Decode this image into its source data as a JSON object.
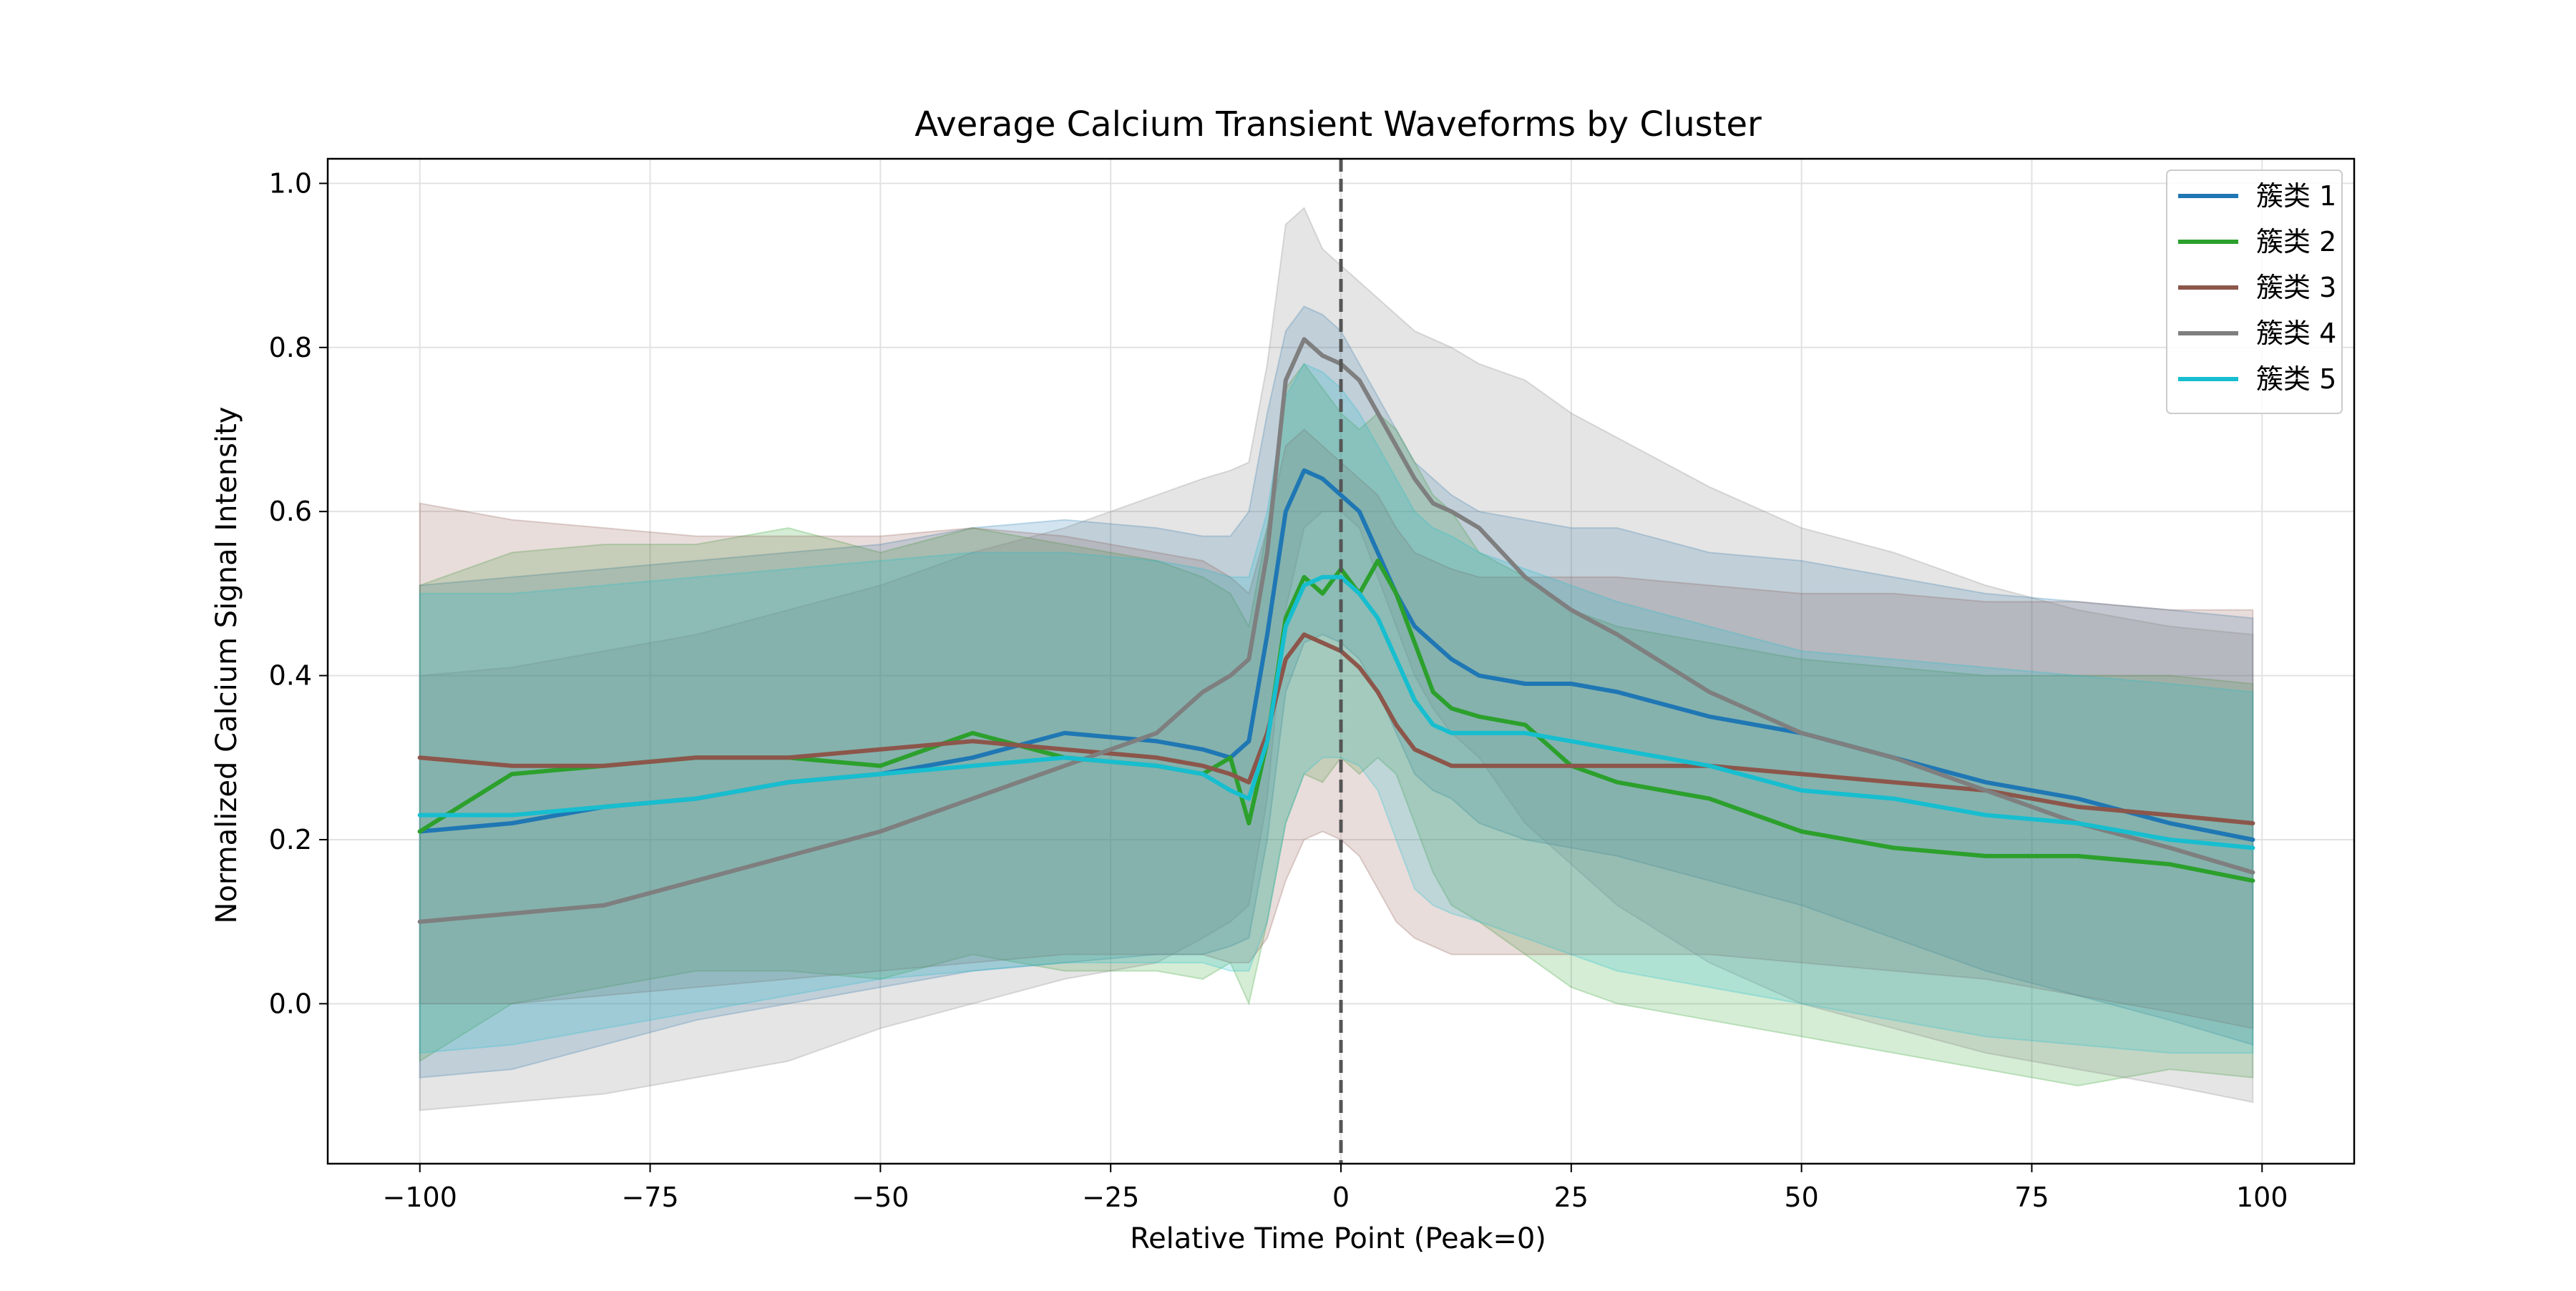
{
  "chart_data": {
    "type": "line",
    "title": "Average Calcium Transient Waveforms by Cluster",
    "xlabel": "Relative Time Point (Peak=0)",
    "ylabel": "Normalized Calcium Signal Intensity",
    "xlim": [
      -110,
      110
    ],
    "ylim": [
      -0.195,
      1.03
    ],
    "xticks": [
      -100,
      -75,
      -50,
      -25,
      0,
      25,
      50,
      75,
      100
    ],
    "xtick_labels": [
      "−100",
      "−75",
      "−50",
      "−25",
      "0",
      "25",
      "50",
      "75",
      "100"
    ],
    "yticks": [
      0.0,
      0.2,
      0.4,
      0.6,
      0.8,
      1.0
    ],
    "ytick_labels": [
      "0.0",
      "0.2",
      "0.4",
      "0.6",
      "0.8",
      "1.0"
    ],
    "grid": true,
    "legend_position": "top-right",
    "reference_line": {
      "x": 0,
      "style": "dashed",
      "color": "#555555"
    },
    "x": [
      -100,
      -90,
      -80,
      -70,
      -60,
      -50,
      -40,
      -30,
      -20,
      -15,
      -12,
      -10,
      -8,
      -6,
      -4,
      -2,
      0,
      2,
      4,
      6,
      8,
      10,
      12,
      15,
      20,
      25,
      30,
      40,
      50,
      60,
      70,
      80,
      90,
      99
    ],
    "series": [
      {
        "name": "簇类 1",
        "color": "#1f77b4",
        "values": [
          0.21,
          0.22,
          0.24,
          0.25,
          0.27,
          0.28,
          0.3,
          0.33,
          0.32,
          0.31,
          0.3,
          0.32,
          0.45,
          0.6,
          0.65,
          0.64,
          0.62,
          0.6,
          0.55,
          0.5,
          0.46,
          0.44,
          0.42,
          0.4,
          0.39,
          0.39,
          0.38,
          0.35,
          0.33,
          0.3,
          0.27,
          0.25,
          0.22,
          0.2
        ],
        "upper": [
          0.51,
          0.52,
          0.53,
          0.54,
          0.55,
          0.56,
          0.58,
          0.59,
          0.58,
          0.57,
          0.57,
          0.6,
          0.72,
          0.82,
          0.85,
          0.84,
          0.82,
          0.78,
          0.74,
          0.7,
          0.66,
          0.64,
          0.62,
          0.6,
          0.59,
          0.58,
          0.58,
          0.55,
          0.54,
          0.52,
          0.5,
          0.49,
          0.48,
          0.47
        ],
        "lower": [
          -0.09,
          -0.08,
          -0.05,
          -0.02,
          0.0,
          0.02,
          0.04,
          0.05,
          0.06,
          0.06,
          0.07,
          0.08,
          0.2,
          0.38,
          0.44,
          0.45,
          0.44,
          0.42,
          0.38,
          0.33,
          0.28,
          0.26,
          0.25,
          0.22,
          0.2,
          0.19,
          0.18,
          0.15,
          0.12,
          0.08,
          0.04,
          0.01,
          -0.02,
          -0.05
        ]
      },
      {
        "name": "簇类 2",
        "color": "#2ca02c",
        "values": [
          0.21,
          0.28,
          0.29,
          0.3,
          0.3,
          0.29,
          0.33,
          0.3,
          0.29,
          0.28,
          0.3,
          0.22,
          0.32,
          0.47,
          0.52,
          0.5,
          0.53,
          0.5,
          0.54,
          0.5,
          0.44,
          0.38,
          0.36,
          0.35,
          0.34,
          0.29,
          0.27,
          0.25,
          0.21,
          0.19,
          0.18,
          0.18,
          0.17,
          0.15
        ],
        "upper": [
          0.51,
          0.55,
          0.56,
          0.56,
          0.58,
          0.55,
          0.58,
          0.56,
          0.54,
          0.52,
          0.5,
          0.46,
          0.58,
          0.75,
          0.78,
          0.75,
          0.72,
          0.7,
          0.72,
          0.7,
          0.66,
          0.62,
          0.6,
          0.55,
          0.52,
          0.48,
          0.46,
          0.44,
          0.42,
          0.41,
          0.4,
          0.4,
          0.4,
          0.39
        ],
        "lower": [
          -0.07,
          0.0,
          0.02,
          0.04,
          0.04,
          0.03,
          0.06,
          0.04,
          0.04,
          0.03,
          0.05,
          0.0,
          0.1,
          0.22,
          0.28,
          0.27,
          0.3,
          0.28,
          0.3,
          0.28,
          0.22,
          0.16,
          0.12,
          0.1,
          0.06,
          0.02,
          0.0,
          -0.02,
          -0.04,
          -0.06,
          -0.08,
          -0.1,
          -0.08,
          -0.09
        ]
      },
      {
        "name": "簇类 3",
        "color": "#8c564b",
        "values": [
          0.3,
          0.29,
          0.29,
          0.3,
          0.3,
          0.31,
          0.32,
          0.31,
          0.3,
          0.29,
          0.28,
          0.27,
          0.33,
          0.42,
          0.45,
          0.44,
          0.43,
          0.41,
          0.38,
          0.34,
          0.31,
          0.3,
          0.29,
          0.29,
          0.29,
          0.29,
          0.29,
          0.29,
          0.28,
          0.27,
          0.26,
          0.24,
          0.23,
          0.22
        ],
        "upper": [
          0.61,
          0.59,
          0.58,
          0.57,
          0.57,
          0.57,
          0.58,
          0.57,
          0.55,
          0.54,
          0.52,
          0.5,
          0.58,
          0.68,
          0.7,
          0.68,
          0.66,
          0.64,
          0.62,
          0.58,
          0.55,
          0.54,
          0.53,
          0.52,
          0.52,
          0.52,
          0.52,
          0.51,
          0.5,
          0.5,
          0.49,
          0.49,
          0.48,
          0.48
        ],
        "lower": [
          0.0,
          0.0,
          0.01,
          0.02,
          0.03,
          0.04,
          0.05,
          0.06,
          0.06,
          0.06,
          0.05,
          0.05,
          0.08,
          0.15,
          0.2,
          0.21,
          0.2,
          0.18,
          0.14,
          0.1,
          0.08,
          0.07,
          0.06,
          0.06,
          0.06,
          0.06,
          0.06,
          0.06,
          0.05,
          0.04,
          0.03,
          0.01,
          -0.01,
          -0.03
        ]
      },
      {
        "name": "簇类 4",
        "color": "#7f7f7f",
        "values": [
          0.1,
          0.11,
          0.12,
          0.15,
          0.18,
          0.21,
          0.25,
          0.29,
          0.33,
          0.38,
          0.4,
          0.42,
          0.55,
          0.76,
          0.81,
          0.79,
          0.78,
          0.76,
          0.72,
          0.68,
          0.64,
          0.61,
          0.6,
          0.58,
          0.52,
          0.48,
          0.45,
          0.38,
          0.33,
          0.3,
          0.26,
          0.22,
          0.19,
          0.16
        ],
        "upper": [
          0.4,
          0.41,
          0.43,
          0.45,
          0.48,
          0.51,
          0.55,
          0.58,
          0.62,
          0.64,
          0.65,
          0.66,
          0.78,
          0.95,
          0.97,
          0.92,
          0.9,
          0.88,
          0.86,
          0.84,
          0.82,
          0.81,
          0.8,
          0.78,
          0.76,
          0.72,
          0.69,
          0.63,
          0.58,
          0.55,
          0.51,
          0.48,
          0.46,
          0.45
        ],
        "lower": [
          -0.13,
          -0.12,
          -0.11,
          -0.09,
          -0.07,
          -0.03,
          0.0,
          0.03,
          0.05,
          0.08,
          0.1,
          0.12,
          0.25,
          0.48,
          0.58,
          0.6,
          0.6,
          0.58,
          0.52,
          0.46,
          0.4,
          0.36,
          0.33,
          0.3,
          0.22,
          0.17,
          0.12,
          0.05,
          0.0,
          -0.03,
          -0.06,
          -0.08,
          -0.1,
          -0.12
        ]
      },
      {
        "name": "簇类 5",
        "color": "#17becf",
        "values": [
          0.23,
          0.23,
          0.24,
          0.25,
          0.27,
          0.28,
          0.29,
          0.3,
          0.29,
          0.28,
          0.26,
          0.25,
          0.32,
          0.46,
          0.51,
          0.52,
          0.52,
          0.5,
          0.47,
          0.42,
          0.37,
          0.34,
          0.33,
          0.33,
          0.33,
          0.32,
          0.31,
          0.29,
          0.26,
          0.25,
          0.23,
          0.22,
          0.2,
          0.19
        ],
        "upper": [
          0.5,
          0.5,
          0.51,
          0.52,
          0.53,
          0.54,
          0.55,
          0.55,
          0.54,
          0.53,
          0.52,
          0.52,
          0.6,
          0.74,
          0.78,
          0.77,
          0.75,
          0.72,
          0.68,
          0.64,
          0.6,
          0.58,
          0.57,
          0.55,
          0.53,
          0.51,
          0.49,
          0.46,
          0.43,
          0.42,
          0.41,
          0.4,
          0.39,
          0.38
        ],
        "lower": [
          -0.06,
          -0.05,
          -0.03,
          -0.01,
          0.01,
          0.03,
          0.04,
          0.05,
          0.05,
          0.05,
          0.04,
          0.04,
          0.1,
          0.22,
          0.28,
          0.3,
          0.3,
          0.29,
          0.26,
          0.2,
          0.14,
          0.12,
          0.11,
          0.1,
          0.08,
          0.06,
          0.04,
          0.02,
          0.0,
          -0.02,
          -0.04,
          -0.05,
          -0.06,
          -0.06
        ]
      }
    ]
  }
}
